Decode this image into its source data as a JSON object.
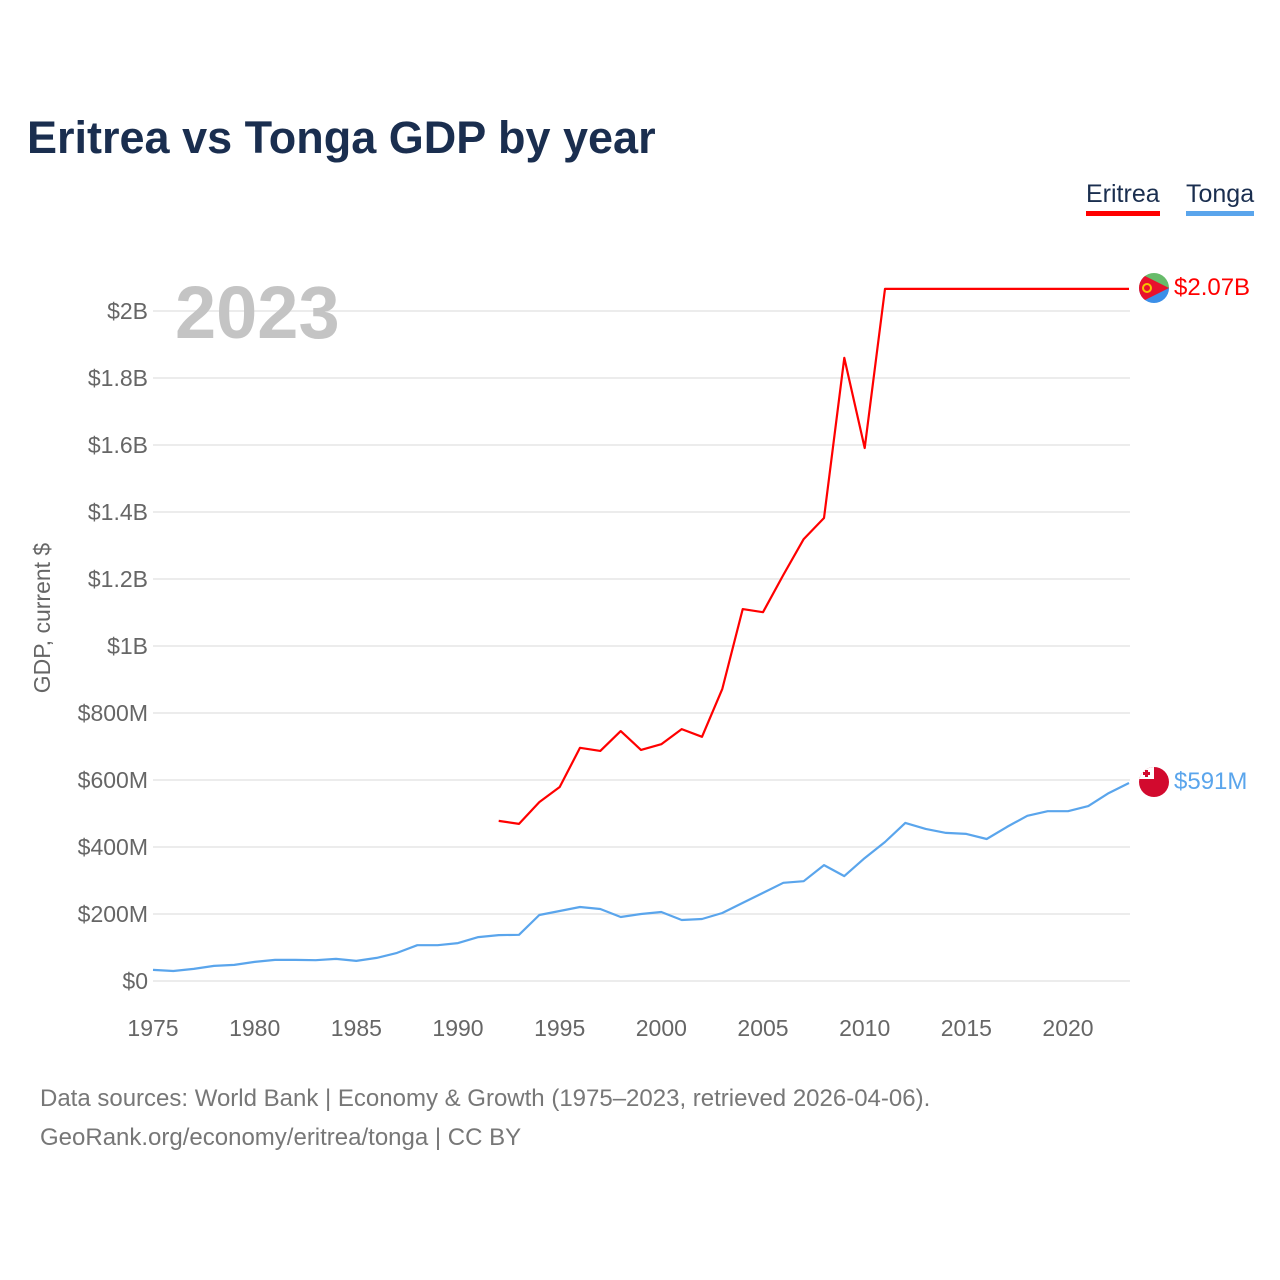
{
  "title": "Eritrea vs Tonga GDP by year",
  "legend": [
    {
      "name": "Eritrea",
      "color": "#ff0000"
    },
    {
      "name": "Tonga",
      "color": "#5aa5ec"
    }
  ],
  "year_label": "2023",
  "end_labels": {
    "eritrea": "$2.07B",
    "tonga": "$591M"
  },
  "footer": {
    "line1": "Data sources: World Bank | Economy & Growth (1975–2023, retrieved 2026-04-06).",
    "line2": "GeoRank.org/economy/eritrea/tonga | CC BY"
  },
  "chart_data": {
    "type": "line",
    "title": "Eritrea vs Tonga GDP by year",
    "xlabel": "",
    "ylabel": "GDP, current $",
    "xlim": [
      1975,
      2023
    ],
    "ylim": [
      0,
      2.07
    ],
    "grid": true,
    "legend_position": "top-right",
    "x_ticks": [
      1975,
      1980,
      1985,
      1990,
      1995,
      2000,
      2005,
      2010,
      2015,
      2020
    ],
    "y_ticks": [
      {
        "value": 0,
        "label": "$0"
      },
      {
        "value": 0.2,
        "label": "$200M"
      },
      {
        "value": 0.4,
        "label": "$400M"
      },
      {
        "value": 0.6,
        "label": "$600M"
      },
      {
        "value": 0.8,
        "label": "$800M"
      },
      {
        "value": 1.0,
        "label": "$1B"
      },
      {
        "value": 1.2,
        "label": "$1.2B"
      },
      {
        "value": 1.4,
        "label": "$1.4B"
      },
      {
        "value": 1.6,
        "label": "$1.6B"
      },
      {
        "value": 1.8,
        "label": "$1.8B"
      },
      {
        "value": 2.0,
        "label": "$2B"
      }
    ],
    "units": "billions USD",
    "series": [
      {
        "name": "Eritrea",
        "color": "#ff0000",
        "start_year": 1992,
        "values": [
          0.478,
          0.469,
          0.534,
          0.579,
          0.696,
          0.687,
          0.746,
          0.69,
          0.707,
          0.752,
          0.729,
          0.872,
          1.11,
          1.101,
          1.212,
          1.319,
          1.382,
          1.86,
          1.591,
          2.066,
          2.066,
          2.066,
          2.066,
          2.066,
          2.066,
          2.066,
          2.066,
          2.066,
          2.066,
          2.066,
          2.066,
          2.066
        ]
      },
      {
        "name": "Tonga",
        "color": "#5aa5ec",
        "start_year": 1975,
        "values": [
          0.033,
          0.03,
          0.036,
          0.045,
          0.048,
          0.057,
          0.063,
          0.063,
          0.062,
          0.066,
          0.06,
          0.069,
          0.084,
          0.107,
          0.107,
          0.113,
          0.131,
          0.137,
          0.138,
          0.197,
          0.209,
          0.221,
          0.215,
          0.191,
          0.2,
          0.206,
          0.182,
          0.185,
          0.203,
          0.233,
          0.263,
          0.293,
          0.298,
          0.346,
          0.313,
          0.367,
          0.415,
          0.472,
          0.454,
          0.442,
          0.439,
          0.424,
          0.46,
          0.493,
          0.507,
          0.507,
          0.522,
          0.561,
          0.591
        ]
      }
    ]
  }
}
